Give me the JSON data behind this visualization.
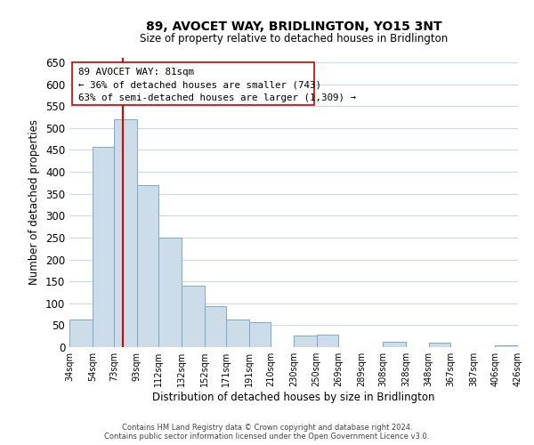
{
  "title": "89, AVOCET WAY, BRIDLINGTON, YO15 3NT",
  "subtitle": "Size of property relative to detached houses in Bridlington",
  "xlabel": "Distribution of detached houses by size in Bridlington",
  "ylabel": "Number of detached properties",
  "bar_edges": [
    34,
    54,
    73,
    93,
    112,
    132,
    152,
    171,
    191,
    210,
    230,
    250,
    269,
    289,
    308,
    328,
    348,
    367,
    387,
    406,
    426
  ],
  "bar_heights": [
    63,
    456,
    520,
    369,
    250,
    140,
    93,
    62,
    57,
    0,
    27,
    28,
    0,
    0,
    12,
    0,
    10,
    0,
    0,
    5
  ],
  "bar_color": "#ccdce8",
  "bar_edgecolor": "#7aaac8",
  "vline_x": 81,
  "vline_color": "#dd0000",
  "ylim": [
    0,
    660
  ],
  "yticks": [
    0,
    50,
    100,
    150,
    200,
    250,
    300,
    350,
    400,
    450,
    500,
    550,
    600,
    650
  ],
  "xtick_labels": [
    "34sqm",
    "54sqm",
    "73sqm",
    "93sqm",
    "112sqm",
    "132sqm",
    "152sqm",
    "171sqm",
    "191sqm",
    "210sqm",
    "230sqm",
    "250sqm",
    "269sqm",
    "289sqm",
    "308sqm",
    "328sqm",
    "348sqm",
    "367sqm",
    "387sqm",
    "406sqm",
    "426sqm"
  ],
  "annotation_line1": "89 AVOCET WAY: 81sqm",
  "annotation_line2": "← 36% of detached houses are smaller (743)",
  "annotation_line3": "63% of semi-detached houses are larger (1,309) →",
  "footer_text": "Contains HM Land Registry data © Crown copyright and database right 2024.\nContains public sector information licensed under the Open Government Licence v3.0.",
  "bg_color": "#ffffff",
  "grid_color": "#c8d8e8"
}
